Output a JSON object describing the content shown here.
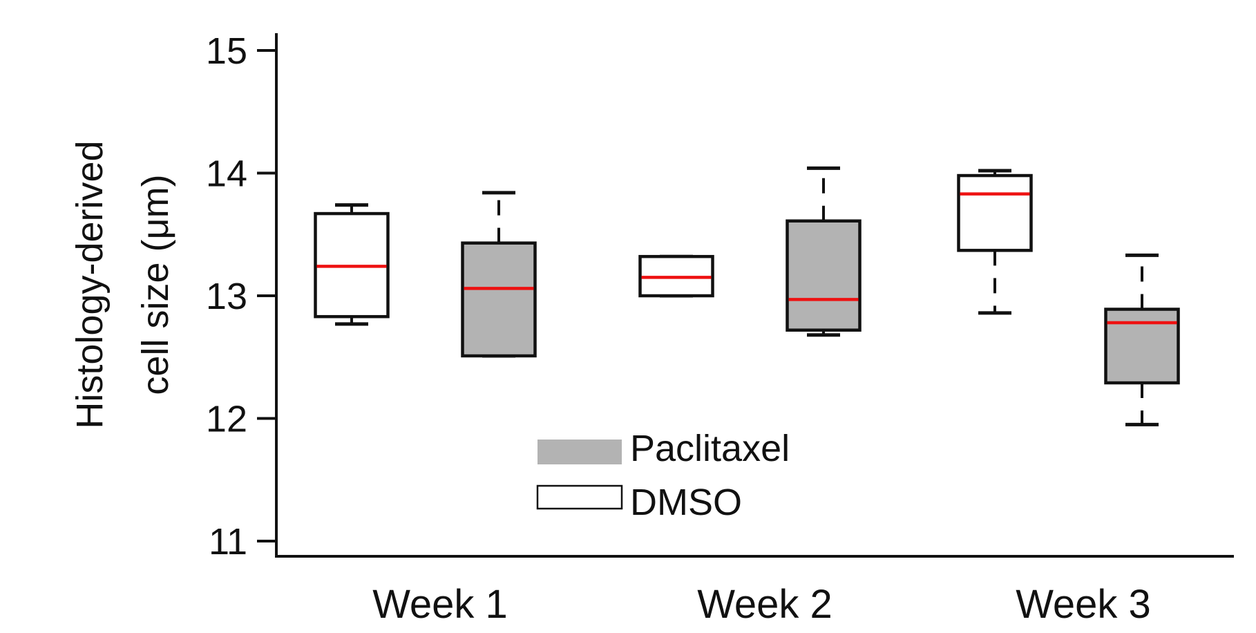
{
  "chart_data": {
    "type": "box",
    "title": "",
    "xlabel": "",
    "ylabel_line1": "Histology-derived",
    "ylabel_line2": "cell size (μm)",
    "ylim": [
      11,
      15.15
    ],
    "yticks": [
      11,
      12,
      13,
      14,
      15
    ],
    "ytick_labels": [
      "11",
      "12",
      "13",
      "14",
      "15"
    ],
    "categories": [
      "Week 1",
      "Week 2",
      "Week 3"
    ],
    "legend": {
      "position": "bottom-center",
      "entries": [
        {
          "label": "Paclitaxel",
          "fill": "#b3b3b3"
        },
        {
          "label": "DMSO",
          "fill": "#ffffff"
        }
      ]
    },
    "series": [
      {
        "name": "DMSO",
        "fill": "#ffffff",
        "boxes": [
          {
            "category": "Week 1",
            "whisker_low": 12.77,
            "q1": 12.83,
            "median": 13.24,
            "q3": 13.67,
            "whisker_high": 13.74
          },
          {
            "category": "Week 2",
            "whisker_low": 13.0,
            "q1": 13.0,
            "median": 13.15,
            "q3": 13.32,
            "whisker_high": 13.32
          },
          {
            "category": "Week 3",
            "whisker_low": 12.86,
            "q1": 13.37,
            "median": 13.83,
            "q3": 13.98,
            "whisker_high": 14.02
          }
        ]
      },
      {
        "name": "Paclitaxel",
        "fill": "#b3b3b3",
        "boxes": [
          {
            "category": "Week 1",
            "whisker_low": 12.51,
            "q1": 12.51,
            "median": 13.06,
            "q3": 13.43,
            "whisker_high": 13.84
          },
          {
            "category": "Week 2",
            "whisker_low": 12.68,
            "q1": 12.72,
            "median": 12.97,
            "q3": 13.61,
            "whisker_high": 14.04
          },
          {
            "category": "Week 3",
            "whisker_low": 11.95,
            "q1": 12.29,
            "median": 12.78,
            "q3": 12.89,
            "whisker_high": 13.33
          }
        ]
      }
    ],
    "colors": {
      "median": "#ee1111",
      "paclitaxel_fill": "#b3b3b3",
      "dmso_fill": "#ffffff",
      "axis": "#111111"
    }
  }
}
